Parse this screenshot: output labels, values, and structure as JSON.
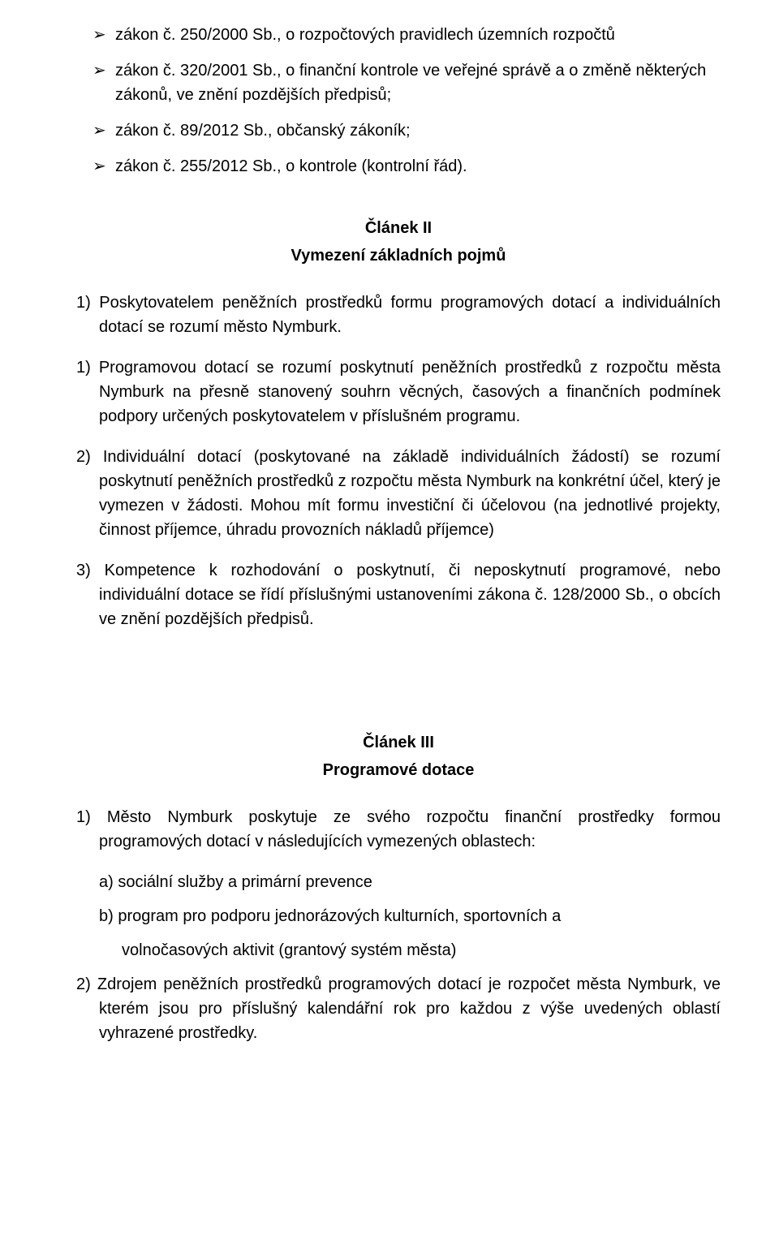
{
  "bullets": [
    "zákon č. 250/2000 Sb., o rozpočtových pravidlech územních rozpočtů",
    "zákon č. 320/2001 Sb., o finanční kontrole ve veřejné správě a o změně některých zákonů, ve znění pozdějších předpisů;",
    "zákon č. 89/2012 Sb., občanský zákoník;",
    "zákon č. 255/2012 Sb., o kontrole (kontrolní řád)."
  ],
  "article2": {
    "title": "Článek II",
    "subtitle": "Vymezení základních pojmů",
    "items": {
      "p1": "1) Poskytovatelem peněžních prostředků formu programových dotací a individuálních dotací se rozumí město Nymburk.",
      "p2": "1) Programovou dotací se rozumí poskytnutí peněžních prostředků z rozpočtu města Nymburk na přesně stanovený souhrn věcných, časových a finančních podmínek podpory určených poskytovatelem v příslušném programu.",
      "p3": "2) Individuální dotací (poskytované na základě individuálních žádostí) se rozumí poskytnutí peněžních prostředků z rozpočtu města Nymburk na konkrétní účel, který je vymezen v žádosti. Mohou mít formu investiční či účelovou (na jednotlivé projekty, činnost příjemce, úhradu provozních nákladů příjemce)",
      "p4": "3) Kompetence k rozhodování o poskytnutí, či neposkytnutí programové, nebo individuální dotace se řídí příslušnými ustanoveními zákona č. 128/2000 Sb., o obcích ve znění pozdějších předpisů."
    }
  },
  "article3": {
    "title": "Článek III",
    "subtitle": "Programové dotace",
    "p1_lead": "1) Město Nymburk poskytuje ze svého rozpočtu finanční prostředky formou programových dotací v následujících vymezených oblastech:",
    "sub_a": "a) sociální služby a primární prevence",
    "sub_b_line1": "b) program pro podporu jednorázových kulturních, sportovních a",
    "sub_b_line2": "volnočasových aktivit (grantový systém města)",
    "p2": "2) Zdrojem peněžních prostředků programových dotací je rozpočet města Nymburk, ve kterém jsou pro příslušný kalendářní rok pro každou z výše uvedených oblastí vyhrazené prostředky."
  },
  "glyphs": {
    "arrow": "➢"
  }
}
